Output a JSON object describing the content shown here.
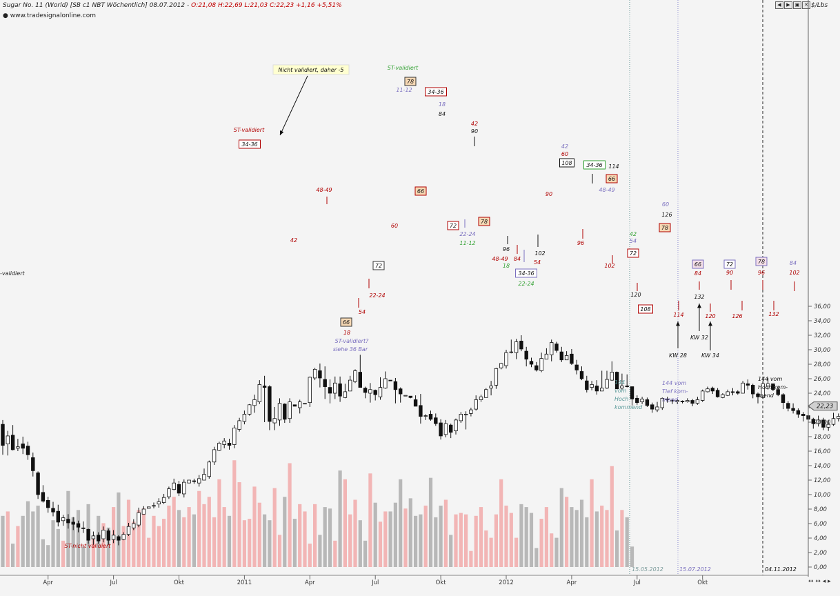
{
  "header": {
    "title": "Sugar No. 11 (World) [SB c1 NBT Wöchentlich] 08.07.2012 - ",
    "ohlc": "O:21,08 H:22,69 L:21,03 C:22,23 +1,16 +5,51%",
    "url": "www.tradesignalonline.com",
    "unit": "$/Lbs"
  },
  "window_controls": [
    "◀",
    "▶",
    "▣",
    "✕"
  ],
  "colors": {
    "background": "#f4f4f4",
    "candle_up": "#ffffff",
    "candle_down": "#111111",
    "volume_up": "#f2b5b5",
    "volume_down": "#b8b8b8",
    "annot_red": "#b00000",
    "annot_purple": "#7a6fbf",
    "annot_green": "#30a030",
    "price_tag": "#d0d0d0"
  },
  "chart_data": {
    "type": "candlestick",
    "title": "Sugar No. 11 (World) [SB c1 NBT Wöchentlich] 08.07.2012",
    "y_unit": "$/Lbs",
    "price_ylim": [
      0,
      38
    ],
    "price_ticks": [
      36,
      34,
      32,
      30,
      28,
      26,
      24,
      22,
      20,
      18,
      16,
      14,
      12,
      10,
      8,
      6,
      4,
      2,
      0
    ],
    "price_tick_labels": [
      "36,00",
      "34,00",
      "32,00",
      "30,00",
      "28,00",
      "26,00",
      "24,00",
      "22,00",
      "20,00",
      "18,00",
      "16,00",
      "14,00",
      "12,00",
      "10,00",
      "8,00",
      "6,00",
      "4,00",
      "2,00",
      "0,00"
    ],
    "x_labels": [
      {
        "label": "Apr",
        "week": 9
      },
      {
        "label": "Jul",
        "week": 22
      },
      {
        "label": "Okt",
        "week": 35
      },
      {
        "label": "2011",
        "week": 48
      },
      {
        "label": "Apr",
        "week": 61
      },
      {
        "label": "Jul",
        "week": 74
      },
      {
        "label": "Okt",
        "week": 87
      },
      {
        "label": "2012",
        "week": 100
      },
      {
        "label": "Apr",
        "week": 113
      },
      {
        "label": "Jul",
        "week": 126
      },
      {
        "label": "Okt",
        "week": 139
      }
    ],
    "last_price": "22,23",
    "volume_values": [
      3.5,
      3.8,
      1.6,
      2.8,
      3.5,
      4.5,
      3.8,
      4.2,
      1.9,
      1.5,
      3.2,
      2.6,
      1.8,
      5.2,
      3.4,
      3.9,
      1.4,
      4.3,
      2.0,
      3.5,
      3.0,
      2.7,
      4.1,
      5.1,
      2.8,
      4.6,
      3.1,
      3.9,
      4.0,
      2.0,
      3.5,
      2.8,
      3.3,
      4.2,
      4.8,
      3.9,
      3.4,
      4.1,
      3.6,
      5.2,
      4.3,
      4.8,
      3.4,
      6.0,
      4.1,
      3.5,
      7.3,
      5.8,
      3.2,
      3.3,
      5.5,
      4.4,
      3.6,
      3.2,
      5.4,
      2.2,
      4.8,
      7.1,
      3.3,
      4.3,
      3.8,
      1.6,
      4.3,
      2.2,
      4.1,
      4.0,
      1.8,
      6.6,
      6.0,
      3.6,
      4.6,
      3.2,
      1.8,
      6.4,
      4.4,
      3.1,
      3.8,
      3.8,
      4.4,
      6.0,
      4.0,
      4.7,
      3.5,
      3.6,
      4.2,
      6.1,
      3.4,
      4.2,
      4.6,
      2.2,
      3.6,
      3.7,
      3.6,
      1.1,
      3.5,
      4.1,
      2.5,
      2.0,
      3.6,
      6.0,
      4.2,
      3.7,
      2.0,
      4.3,
      4.1,
      3.7,
      1.3,
      3.3,
      4.1,
      2.3,
      2.0,
      5.4,
      4.8,
      4.1,
      3.9,
      4.6,
      3.4,
      6.0,
      3.8,
      4.2,
      3.9,
      6.9,
      2.5,
      3.9,
      3.4,
      1.4
    ],
    "candles": [
      [
        19.7,
        16.8,
        20.3,
        15.5
      ],
      [
        17.0,
        18.1,
        18.8,
        15.4
      ],
      [
        18.2,
        16.2,
        19.6,
        16.1
      ],
      [
        16.4,
        16.6,
        17.7,
        16.0
      ],
      [
        17.0,
        16.4,
        18.0,
        15.6
      ],
      [
        16.7,
        15.5,
        17.3,
        14.8
      ],
      [
        15.1,
        13.3,
        15.8,
        12.5
      ],
      [
        13.0,
        10.0,
        13.2,
        9.4
      ],
      [
        10.3,
        9.1,
        11.3,
        8.9
      ],
      [
        9.2,
        8.2,
        9.7,
        7.5
      ],
      [
        8.1,
        7.6,
        9.0,
        7.0
      ],
      [
        7.7,
        6.2,
        8.6,
        5.6
      ],
      [
        6.4,
        6.8,
        7.2,
        5.7
      ],
      [
        6.6,
        6.1,
        7.3,
        5.3
      ],
      [
        6.2,
        5.9,
        6.9,
        5.1
      ],
      [
        6.0,
        5.5,
        6.4,
        4.8
      ],
      [
        5.4,
        5.3,
        6.3,
        4.7
      ],
      [
        5.2,
        3.7,
        5.3,
        3.2
      ],
      [
        3.9,
        4.3,
        4.9,
        3.1
      ],
      [
        4.4,
        3.6,
        4.8,
        3.2
      ],
      [
        3.9,
        5.1,
        5.6,
        3.4
      ],
      [
        5.0,
        3.7,
        5.3,
        3.1
      ],
      [
        3.8,
        4.4,
        5.1,
        3.3
      ],
      [
        4.2,
        3.7,
        4.4,
        3.0
      ],
      [
        3.8,
        4.5,
        4.8,
        3.7
      ],
      [
        4.5,
        5.6,
        6.1,
        4.3
      ],
      [
        5.4,
        6.0,
        6.6,
        5.1
      ],
      [
        5.8,
        7.5,
        8.2,
        5.5
      ],
      [
        7.3,
        8.0,
        8.4,
        7.6
      ],
      [
        8.1,
        8.3,
        8.3,
        8.3
      ],
      [
        8.4,
        8.5,
        8.9,
        8.1
      ],
      [
        8.7,
        9.0,
        9.5,
        8.2
      ],
      [
        8.9,
        9.6,
        10.1,
        8.7
      ],
      [
        9.7,
        10.8,
        11.1,
        9.4
      ],
      [
        10.7,
        11.6,
        12.2,
        10.6
      ],
      [
        11.4,
        10.2,
        11.9,
        9.8
      ],
      [
        10.1,
        11.7,
        12.1,
        9.6
      ],
      [
        11.6,
        12.0,
        12.0,
        12.0
      ],
      [
        11.9,
        11.8,
        12.2,
        11.5
      ],
      [
        11.6,
        12.2,
        12.7,
        11.1
      ],
      [
        12.0,
        12.8,
        13.6,
        12.1
      ],
      [
        12.5,
        14.5,
        14.7,
        12.2
      ],
      [
        14.5,
        16.2,
        16.6,
        14.1
      ],
      [
        16.1,
        17.1,
        17.3,
        16.0
      ],
      [
        16.9,
        17.4,
        17.8,
        16.4
      ],
      [
        17.1,
        16.8,
        17.7,
        16.2
      ],
      [
        16.9,
        19.2,
        19.6,
        16.4
      ],
      [
        19.0,
        20.2,
        20.6,
        18.7
      ],
      [
        20.1,
        21.1,
        21.6,
        19.7
      ],
      [
        21.1,
        22.4,
        22.5,
        20.9
      ],
      [
        22.3,
        23.1,
        23.8,
        21.3
      ],
      [
        22.8,
        25.2,
        25.8,
        22.5
      ],
      [
        25.0,
        24.8,
        26.4,
        20.0
      ],
      [
        24.9,
        20.1,
        25.1,
        18.9
      ],
      [
        19.9,
        20.5,
        22.1,
        18.9
      ],
      [
        20.3,
        22.6,
        23.3,
        19.5
      ],
      [
        22.5,
        20.4,
        22.6,
        19.9
      ],
      [
        20.5,
        22.8,
        23.3,
        19.9
      ],
      [
        22.4,
        22.2,
        22.2,
        22.2
      ],
      [
        22.0,
        22.8,
        23.1,
        21.2
      ],
      [
        22.6,
        22.6,
        22.6,
        22.6
      ],
      [
        22.7,
        26.2,
        26.3,
        22.1
      ],
      [
        26.1,
        27.3,
        27.5,
        25.8
      ],
      [
        27.1,
        26.1,
        28.1,
        24.8
      ],
      [
        25.9,
        24.9,
        27.7,
        23.2
      ],
      [
        24.8,
        24.0,
        25.9,
        22.6
      ],
      [
        24.0,
        25.4,
        26.3,
        23.2
      ],
      [
        25.3,
        23.6,
        26.3,
        22.8
      ],
      [
        23.4,
        24.2,
        25.3,
        23.3
      ],
      [
        24.3,
        25.8,
        26.4,
        24.9
      ],
      [
        25.6,
        27.1,
        27.3,
        25.4
      ],
      [
        26.9,
        24.8,
        29.3,
        24.8
      ],
      [
        24.7,
        24.1,
        24.9,
        23.3
      ],
      [
        24.0,
        24.5,
        25.4,
        22.7
      ],
      [
        24.4,
        23.8,
        24.5,
        23.0
      ],
      [
        23.5,
        24.8,
        26.2,
        23.1
      ],
      [
        24.7,
        26.0,
        27.0,
        24.6
      ],
      [
        25.8,
        25.7,
        25.7,
        25.7
      ],
      [
        25.6,
        24.5,
        26.1,
        22.6
      ],
      [
        24.6,
        23.9,
        24.8,
        22.7
      ],
      [
        23.6,
        23.7,
        23.7,
        23.7
      ],
      [
        23.6,
        23.4,
        23.5,
        23.3
      ],
      [
        23.1,
        22.2,
        23.7,
        22.2
      ],
      [
        22.3,
        20.8,
        23.9,
        19.8
      ],
      [
        20.9,
        20.9,
        21.1,
        20.3
      ],
      [
        21.1,
        20.4,
        21.6,
        20.2
      ],
      [
        20.6,
        19.8,
        21.2,
        19.5
      ],
      [
        19.9,
        18.1,
        20.4,
        17.6
      ],
      [
        18.3,
        19.8,
        20.3,
        17.9
      ],
      [
        19.6,
        18.6,
        19.8,
        17.8
      ],
      [
        18.8,
        20.3,
        20.5,
        18.3
      ],
      [
        20.2,
        21.1,
        21.4,
        19.9
      ],
      [
        21.1,
        21.1,
        21.5,
        19.0
      ],
      [
        21.2,
        21.7,
        22.0,
        20.8
      ],
      [
        21.8,
        23.1,
        23.7,
        21.6
      ],
      [
        23.1,
        23.5,
        23.8,
        22.8
      ],
      [
        23.4,
        24.5,
        24.7,
        23.5
      ],
      [
        24.7,
        25.0,
        25.7,
        23.7
      ],
      [
        25.1,
        27.4,
        27.5,
        24.6
      ],
      [
        27.5,
        28.1,
        28.2,
        27.3
      ],
      [
        27.8,
        29.6,
        30.0,
        27.4
      ],
      [
        29.6,
        29.7,
        31.4,
        29.5
      ],
      [
        29.6,
        31.1,
        31.5,
        28.7
      ],
      [
        31.2,
        30.1,
        32.0,
        29.8
      ],
      [
        29.8,
        28.7,
        30.4,
        27.7
      ],
      [
        28.4,
        28.0,
        28.9,
        27.6
      ],
      [
        27.8,
        27.2,
        28.3,
        27.0
      ],
      [
        27.1,
        28.8,
        29.6,
        26.9
      ],
      [
        28.7,
        29.4,
        30.2,
        28.9
      ],
      [
        29.3,
        31.0,
        31.4,
        28.4
      ],
      [
        30.8,
        29.9,
        31.1,
        29.6
      ],
      [
        29.7,
        28.6,
        30.4,
        28.3
      ],
      [
        28.6,
        29.2,
        29.8,
        28.9
      ],
      [
        29.4,
        28.1,
        30.1,
        27.9
      ],
      [
        27.9,
        27.2,
        28.6,
        26.6
      ],
      [
        27.0,
        26.0,
        27.7,
        25.8
      ],
      [
        25.7,
        24.5,
        26.4,
        24.1
      ],
      [
        24.8,
        25.2,
        25.7,
        24.4
      ],
      [
        25.0,
        24.3,
        25.8,
        23.8
      ],
      [
        24.3,
        24.7,
        27.1,
        24.4
      ],
      [
        24.7,
        25.9,
        27.1,
        24.6
      ],
      [
        25.8,
        26.9,
        28.4,
        25.7
      ],
      [
        26.9,
        24.6,
        27.0,
        24.6
      ],
      [
        24.7,
        25.0,
        26.7,
        24.4
      ],
      [
        25.0,
        24.9,
        26.6,
        24.8
      ],
      [
        24.9,
        23.2,
        24.8,
        22.3
      ],
      [
        23.3,
        22.7,
        23.7,
        22.4
      ],
      [
        22.8,
        23.2,
        23.5,
        22.5
      ],
      [
        23.1,
        22.3,
        23.4,
        22.1
      ],
      [
        22.4,
        21.8,
        22.7,
        21.3
      ],
      [
        21.7,
        22.1,
        22.8,
        21.4
      ],
      [
        22.0,
        23.3,
        23.4,
        21.7
      ],
      [
        23.2,
        23.1,
        23.5,
        22.7
      ],
      [
        23.0,
        22.9,
        23.2,
        22.5
      ],
      [
        22.8,
        23.0,
        23.2,
        22.5
      ],
      [
        22.9,
        22.8,
        23.0,
        22.6
      ],
      [
        22.8,
        23.0,
        23.3,
        22.7
      ],
      [
        23.0,
        22.6,
        23.2,
        22.2
      ],
      [
        22.6,
        23.1,
        23.5,
        22.4
      ],
      [
        23.0,
        24.3,
        24.5,
        22.8
      ],
      [
        24.2,
        24.6,
        24.9,
        24.1
      ],
      [
        24.7,
        24.3,
        24.9,
        23.9
      ],
      [
        24.4,
        23.5,
        24.7,
        23.4
      ],
      [
        23.4,
        23.8,
        24.0,
        23.3
      ],
      [
        23.7,
        24.2,
        24.5,
        23.6
      ],
      [
        24.2,
        24.1,
        24.7,
        23.7
      ],
      [
        24.2,
        24.0,
        24.4,
        23.8
      ],
      [
        24.0,
        25.4,
        25.7,
        24.0
      ],
      [
        25.3,
        25.1,
        25.9,
        24.5
      ],
      [
        25.1,
        23.9,
        25.3,
        23.3
      ],
      [
        23.9,
        23.5,
        24.1,
        22.6
      ],
      [
        23.4,
        25.3,
        25.8,
        23.2
      ],
      [
        25.0,
        25.3,
        26.1,
        24.5
      ],
      [
        25.3,
        24.5,
        25.3,
        24.3
      ],
      [
        24.5,
        23.8,
        25.0,
        23.6
      ],
      [
        23.8,
        22.7,
        24.0,
        21.8
      ],
      [
        22.6,
        21.9,
        22.9,
        21.5
      ],
      [
        21.9,
        21.6,
        22.6,
        21.2
      ],
      [
        21.6,
        21.1,
        21.9,
        20.6
      ],
      [
        21.1,
        20.9,
        21.4,
        20.1
      ],
      [
        20.9,
        20.4,
        21.2,
        19.6
      ],
      [
        20.4,
        19.8,
        20.6,
        19.1
      ],
      [
        19.8,
        20.3,
        20.9,
        19.4
      ],
      [
        20.3,
        19.3,
        20.6,
        18.9
      ],
      [
        19.3,
        19.7,
        20.3,
        18.8
      ],
      [
        19.7,
        20.5,
        21.3,
        19.5
      ],
      [
        20.5,
        20.8,
        21.2,
        20.1
      ],
      [
        20.8,
        20.6,
        21.3,
        20.3
      ],
      [
        20.7,
        21.1,
        21.6,
        20.6
      ],
      [
        21.08,
        22.23,
        22.69,
        21.03
      ]
    ]
  },
  "annotations": {
    "validiert_left": "-validiert",
    "st_nicht_validiert": "ST-nicht validiert",
    "st_validiert_1": "ST-validiert",
    "nicht_validiert_box": "Nicht validiert, daher -5",
    "st_validiert_2": "ST-validiert",
    "st_validiert_q1": "ST-validiert?",
    "st_validiert_q2": "siehe 36 Bar",
    "b_34_36_a": "34-36",
    "b_78_a": "78",
    "b_34_36_b": "34-36",
    "b_66_a": "66",
    "b_66_b": "66",
    "b_72_a": "72",
    "b_72_b": "72",
    "b_78_b": "78",
    "b_108_a": "108",
    "b_34_36_c": "34-36",
    "b_66_c": "66",
    "b_34_36_d": "34-36",
    "b_72_c": "72",
    "b_108_b": "108",
    "b_78_c": "78",
    "b_66_d": "66",
    "b_72_d": "72",
    "b_78_d": "78",
    "t_48_49_a": "48-49",
    "t_42_a": "42",
    "t_60_a": "60",
    "t_22_24_a": "22-24",
    "t_54_a": "54",
    "t_18_a": "18",
    "t_11_12_a": "11-12",
    "t_18_b": "18",
    "t_84_a": "84",
    "t_42_b": "42",
    "t_90_a": "90",
    "t_22_24_b": "22-24",
    "t_11_12_b": "11-12",
    "t_96_a": "96",
    "t_48_49_b": "48-49",
    "t_18_c": "18",
    "t_84_b": "84",
    "t_54_b": "54",
    "t_22_24_c": "22-24",
    "t_102_a": "102",
    "t_90_b": "90",
    "t_42_c": "42",
    "t_60_b": "60",
    "t_96_b": "96",
    "t_114_a": "114",
    "t_48_49_c": "48-49",
    "t_102_b": "102",
    "t_42_d": "42",
    "t_54_c": "54",
    "t_120_a": "120",
    "t_60_c": "60",
    "t_126_a": "126",
    "t_84_c": "84",
    "t_90_c": "90",
    "t_96_c": "96",
    "t_102_c": "102",
    "t_84_d": "84",
    "t_114_b": "114",
    "t_132_a": "132",
    "t_120_b": "120",
    "t_126_b": "126",
    "t_132_b": "132",
    "kw28": "KW 28",
    "kw32": "KW 32",
    "kw34": "KW 34",
    "n144a_1": "144",
    "n144a_2": "vom",
    "n144a_3": "Hoch",
    "n144a_4": "kommend",
    "n144b_1": "144 vom",
    "n144b_2": "Tief kom-",
    "n144b_3": "mend",
    "n144c_1": "144 vom",
    "n144c_2": "Hoch kom-",
    "n144c_3": "mend",
    "date_1": "15.05.2012",
    "date_2": "15.07.2012",
    "date_3": "04.11.2012"
  }
}
